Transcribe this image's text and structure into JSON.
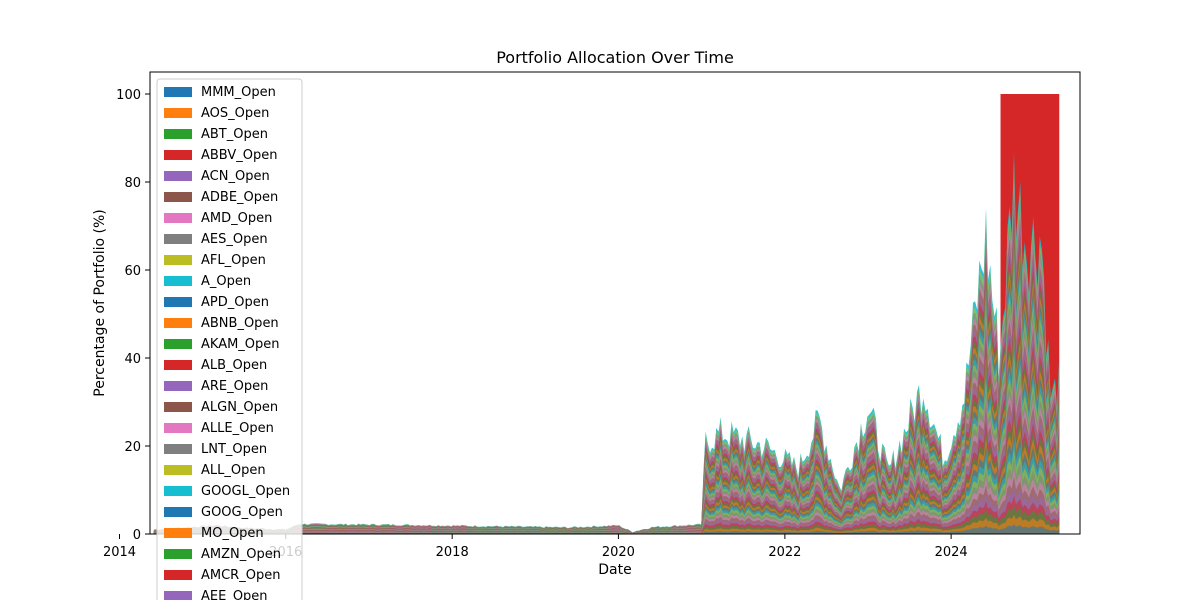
{
  "chart_data": {
    "type": "area",
    "stacked": true,
    "title": "Portfolio Allocation Over Time",
    "xlabel": "Date",
    "ylabel": "Percentage of Portfolio (%)",
    "xlim": [
      "2014-05-15",
      "2025-07-20"
    ],
    "ylim": [
      0,
      105
    ],
    "x_ticks": [
      {
        "value": "2014-01-01",
        "label": "2014"
      },
      {
        "value": "2016-01-01",
        "label": "2016"
      },
      {
        "value": "2018-01-01",
        "label": "2018"
      },
      {
        "value": "2020-01-01",
        "label": "2020"
      },
      {
        "value": "2022-01-01",
        "label": "2022"
      },
      {
        "value": "2024-01-01",
        "label": "2024"
      }
    ],
    "y_ticks": [
      0,
      20,
      40,
      60,
      80,
      100
    ],
    "grid": false,
    "legend_position": "upper-left",
    "palette": [
      "#1f77b4",
      "#ff7f0e",
      "#2ca02c",
      "#d62728",
      "#9467bd",
      "#8c564b",
      "#e377c2",
      "#7f7f7f",
      "#bcbd22",
      "#17becf"
    ],
    "total_envelope": [
      {
        "x": "2014-06-01",
        "y": 1.0
      },
      {
        "x": "2015-03-01",
        "y": 2.0
      },
      {
        "x": "2015-06-01",
        "y": 1.5
      },
      {
        "x": "2016-01-01",
        "y": 1.0
      },
      {
        "x": "2016-03-01",
        "y": 2.3
      },
      {
        "x": "2017-06-01",
        "y": 2.1
      },
      {
        "x": "2018-06-01",
        "y": 1.8
      },
      {
        "x": "2019-06-01",
        "y": 1.5
      },
      {
        "x": "2020-01-01",
        "y": 2.0
      },
      {
        "x": "2020-03-01",
        "y": 0.5
      },
      {
        "x": "2020-06-01",
        "y": 1.6
      },
      {
        "x": "2021-01-01",
        "y": 2.2
      },
      {
        "x": "2021-01-15",
        "y": 21.0
      },
      {
        "x": "2021-04-01",
        "y": 23.0
      },
      {
        "x": "2021-10-01",
        "y": 20.0
      },
      {
        "x": "2022-03-01",
        "y": 15.0
      },
      {
        "x": "2022-06-01",
        "y": 26.0
      },
      {
        "x": "2022-09-01",
        "y": 10.0
      },
      {
        "x": "2023-01-01",
        "y": 29.0
      },
      {
        "x": "2023-04-01",
        "y": 14.0
      },
      {
        "x": "2023-09-01",
        "y": 34.0
      },
      {
        "x": "2023-12-01",
        "y": 17.0
      },
      {
        "x": "2024-03-01",
        "y": 32.0
      },
      {
        "x": "2024-06-01",
        "y": 68.0
      },
      {
        "x": "2024-08-01",
        "y": 40.0
      },
      {
        "x": "2024-10-01",
        "y": 81.0
      },
      {
        "x": "2024-12-01",
        "y": 66.0
      },
      {
        "x": "2025-02-01",
        "y": 68.0
      },
      {
        "x": "2025-03-15",
        "y": 30.0
      },
      {
        "x": "2025-04-20",
        "y": 35.0
      }
    ],
    "last_series_region": {
      "series": "ABBV_Open",
      "start": "2024-08-05",
      "end": "2025-04-20",
      "top": 100
    },
    "legend": [
      {
        "label": "MMM_Open",
        "color": "#1f77b4"
      },
      {
        "label": "AOS_Open",
        "color": "#ff7f0e"
      },
      {
        "label": "ABT_Open",
        "color": "#2ca02c"
      },
      {
        "label": "ABBV_Open",
        "color": "#d62728"
      },
      {
        "label": "ACN_Open",
        "color": "#9467bd"
      },
      {
        "label": "ADBE_Open",
        "color": "#8c564b"
      },
      {
        "label": "AMD_Open",
        "color": "#e377c2"
      },
      {
        "label": "AES_Open",
        "color": "#7f7f7f"
      },
      {
        "label": "AFL_Open",
        "color": "#bcbd22"
      },
      {
        "label": "A_Open",
        "color": "#17becf"
      },
      {
        "label": "APD_Open",
        "color": "#1f77b4"
      },
      {
        "label": "ABNB_Open",
        "color": "#ff7f0e"
      },
      {
        "label": "AKAM_Open",
        "color": "#2ca02c"
      },
      {
        "label": "ALB_Open",
        "color": "#d62728"
      },
      {
        "label": "ARE_Open",
        "color": "#9467bd"
      },
      {
        "label": "ALGN_Open",
        "color": "#8c564b"
      },
      {
        "label": "ALLE_Open",
        "color": "#e377c2"
      },
      {
        "label": "LNT_Open",
        "color": "#7f7f7f"
      },
      {
        "label": "ALL_Open",
        "color": "#bcbd22"
      },
      {
        "label": "GOOGL_Open",
        "color": "#17becf"
      },
      {
        "label": "GOOG_Open",
        "color": "#1f77b4"
      },
      {
        "label": "MO_Open",
        "color": "#ff7f0e"
      },
      {
        "label": "AMZN_Open",
        "color": "#2ca02c"
      },
      {
        "label": "AMCR_Open",
        "color": "#d62728"
      },
      {
        "label": "AEE_Open",
        "color": "#9467bd"
      }
    ]
  }
}
